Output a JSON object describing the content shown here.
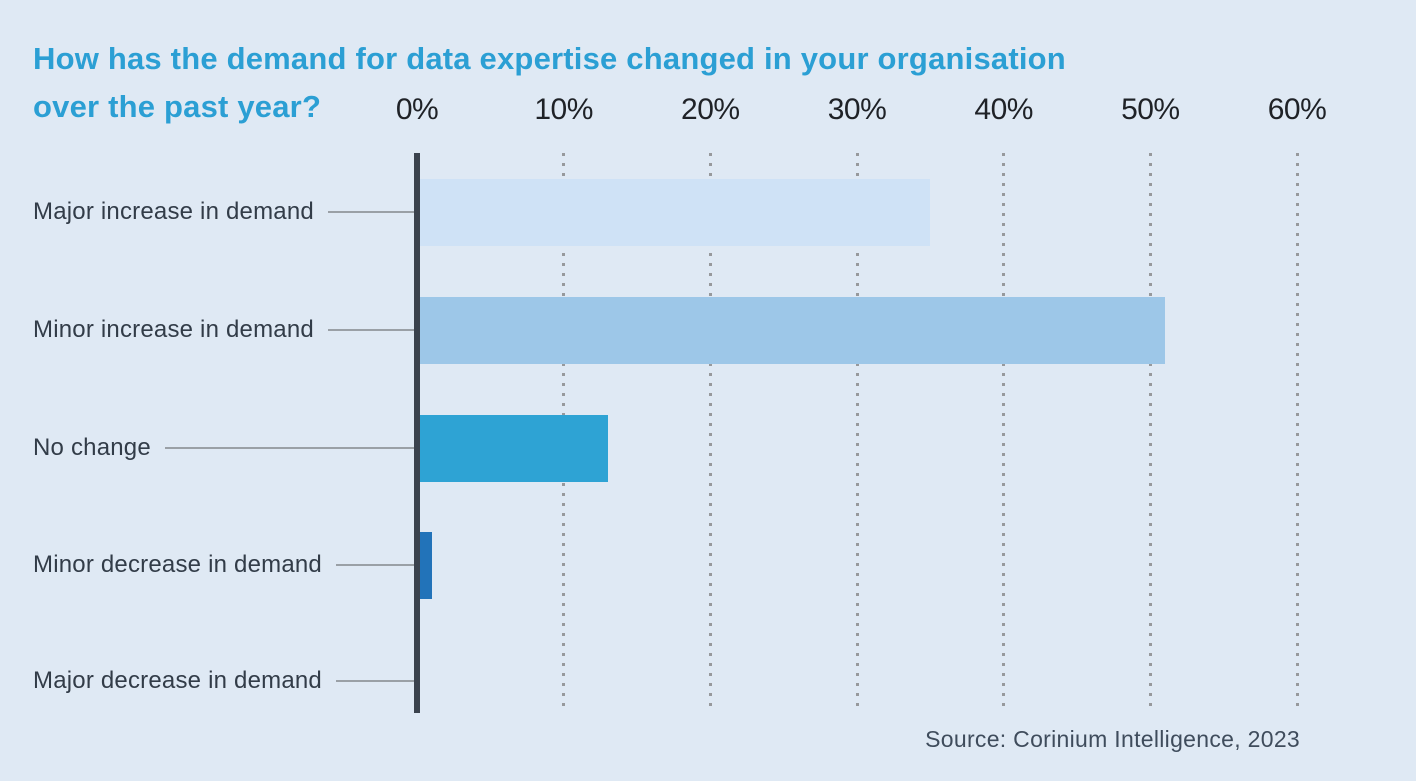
{
  "title": {
    "line1": "How has the demand for data expertise changed in your organisation",
    "line2": "over the past year?"
  },
  "source": "Source: Corinium Intelligence, 2023",
  "chart_data": {
    "type": "bar",
    "orientation": "horizontal",
    "title": "How has the demand for data expertise changed in your organisation over the past year?",
    "categories": [
      "Major increase in demand",
      "Minor increase in demand",
      "No change",
      "Minor decrease in demand",
      "Major decrease in demand"
    ],
    "values": [
      35,
      51,
      13,
      1,
      0
    ],
    "unit": "%",
    "x_ticks": [
      "0%",
      "10%",
      "20%",
      "30%",
      "40%",
      "50%",
      "60%"
    ],
    "xlim": [
      0,
      60
    ],
    "grid": "vertical-dotted",
    "legend": "none",
    "bar_colors": [
      "#cfe2f6",
      "#9dc7e8",
      "#2ea3d4",
      "#2273b9",
      "#2273b9"
    ],
    "colors": {
      "background": "#dfe9f4",
      "title": "#2b9fd4",
      "axis_line": "#3a424d",
      "gridline": "#97999c",
      "category_label": "#323c48",
      "tick_label": "#1f2227",
      "leader_line": "#9aa0a6",
      "source_text": "#3f4c5c"
    }
  }
}
